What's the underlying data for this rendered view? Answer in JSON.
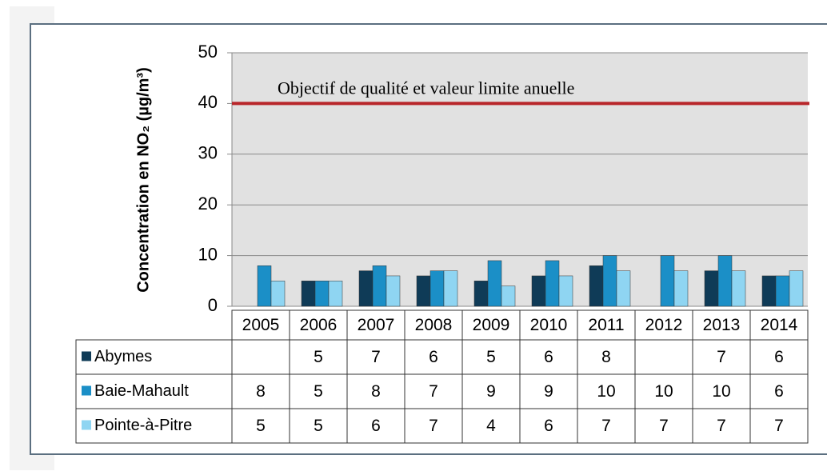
{
  "chart_data": {
    "type": "bar",
    "y_axis_label": "Concentration en NO₂ (µg/m³)",
    "categories": [
      "2005",
      "2006",
      "2007",
      "2008",
      "2009",
      "2010",
      "2011",
      "2012",
      "2013",
      "2014"
    ],
    "series": [
      {
        "name": "Abymes",
        "color": "#0f3b57",
        "values": [
          null,
          5,
          7,
          6,
          5,
          6,
          8,
          null,
          7,
          6
        ]
      },
      {
        "name": "Baie-Mahault",
        "color": "#1b8fc7",
        "values": [
          8,
          5,
          8,
          7,
          9,
          9,
          10,
          10,
          10,
          6
        ]
      },
      {
        "name": "Pointe-à-Pitre",
        "color": "#8fd5f2",
        "values": [
          5,
          5,
          6,
          7,
          4,
          6,
          7,
          7,
          7,
          7
        ]
      }
    ],
    "ylim": [
      0,
      50
    ],
    "yticks": [
      0,
      10,
      20,
      30,
      40,
      50
    ],
    "grid": true,
    "reference_line": {
      "value": 40,
      "label": "Objectif de qualité et valeur limite anuelle",
      "color": "#b8262a"
    }
  }
}
